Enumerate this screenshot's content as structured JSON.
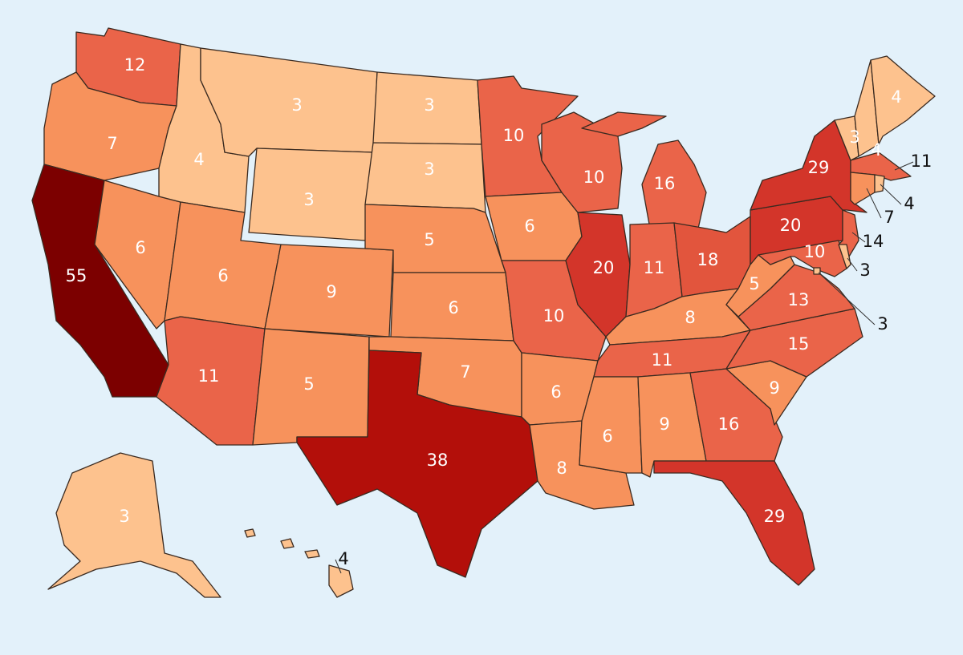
{
  "values": [
    12,
    7,
    55,
    6,
    4,
    3,
    3,
    6,
    11,
    9,
    5,
    3,
    3,
    5,
    6,
    7,
    38,
    10,
    6,
    10,
    6,
    8,
    10,
    20,
    16,
    11,
    18,
    8,
    11,
    6,
    9,
    16,
    29,
    9,
    15,
    13,
    5,
    20,
    29,
    14,
    10,
    3,
    3,
    3,
    4,
    4,
    11,
    7,
    4,
    3,
    4
  ]
}
